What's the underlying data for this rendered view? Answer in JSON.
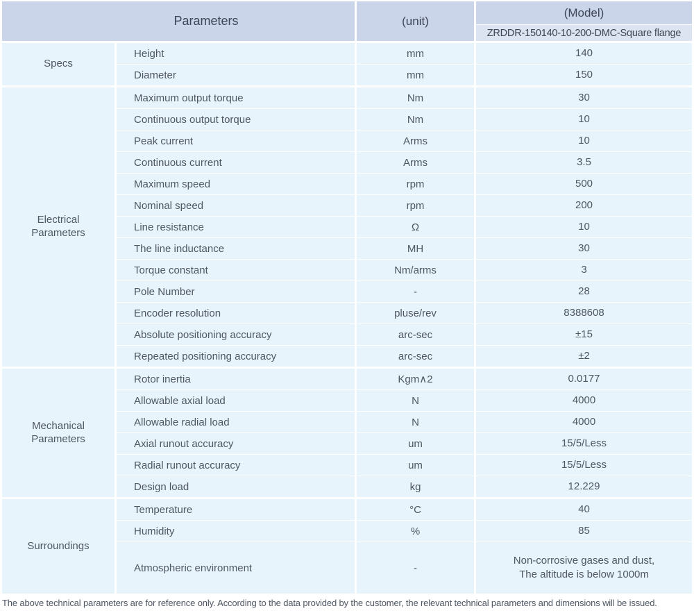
{
  "header": {
    "parameters_label": "Parameters",
    "unit_label": "(unit)",
    "model_label": "(Model)",
    "model_value": "ZRDDR-150140-10-200-DMC-Square flange"
  },
  "sections": [
    {
      "category": "Specs",
      "rows": [
        {
          "label": "Height",
          "unit": "mm",
          "value": "140"
        },
        {
          "label": "Diameter",
          "unit": "mm",
          "value": "150"
        }
      ]
    },
    {
      "category": "Electrical Parameters",
      "rows": [
        {
          "label": "Maximum output torque",
          "unit": "Nm",
          "value": "30"
        },
        {
          "label": "Continuous output torque",
          "unit": "Nm",
          "value": "10"
        },
        {
          "label": "Peak current",
          "unit": "Arms",
          "value": "10"
        },
        {
          "label": "Continuous current",
          "unit": "Arms",
          "value": "3.5"
        },
        {
          "label": "Maximum speed",
          "unit": "rpm",
          "value": "500"
        },
        {
          "label": "Nominal speed",
          "unit": "rpm",
          "value": "200"
        },
        {
          "label": "Line resistance",
          "unit": "Ω",
          "value": "10"
        },
        {
          "label": "The line inductance",
          "unit": "MH",
          "value": "30"
        },
        {
          "label": "Torque constant",
          "unit": "Nm/arms",
          "value": "3"
        },
        {
          "label": "Pole Number",
          "unit": "-",
          "value": "28"
        },
        {
          "label": "Encoder resolution",
          "unit": "pluse/rev",
          "value": "8388608"
        },
        {
          "label": "Absolute positioning accuracy",
          "unit": "arc-sec",
          "value": "±15"
        },
        {
          "label": "Repeated positioning accuracy",
          "unit": "arc-sec",
          "value": "±2"
        }
      ]
    },
    {
      "category": "Mechanical Parameters",
      "rows": [
        {
          "label": "Rotor inertia",
          "unit": "Kgm∧2",
          "value": "0.0177"
        },
        {
          "label": "Allowable axial load",
          "unit": "N",
          "value": "4000"
        },
        {
          "label": "Allowable radial load",
          "unit": "N",
          "value": "4000"
        },
        {
          "label": "Axial runout accuracy",
          "unit": "um",
          "value": "15/5/Less"
        },
        {
          "label": "Radial runout accuracy",
          "unit": "um",
          "value": "15/5/Less"
        },
        {
          "label": "Design load",
          "unit": "kg",
          "value": "12.229"
        }
      ]
    },
    {
      "category": "Surroundings",
      "rows": [
        {
          "label": "Temperature",
          "unit": "°C",
          "value": "40"
        },
        {
          "label": "Humidity",
          "unit": "%",
          "value": "85"
        },
        {
          "label": "Atmospheric environment",
          "unit": "-",
          "value": "Non-corrosive gases and dust,\nThe altitude is below 1000m"
        }
      ]
    }
  ],
  "footer": {
    "note": "The above technical parameters are for reference only. According to the data provided by the customer, the relevant technical parameters and dimensions will be issued."
  },
  "colors": {
    "header_bg": "#cbd5ea",
    "model_sub_bg": "#dde4f1",
    "cell_bg": "#e7f4fc",
    "header_text": "#3d4656",
    "body_text": "#4e5763"
  }
}
